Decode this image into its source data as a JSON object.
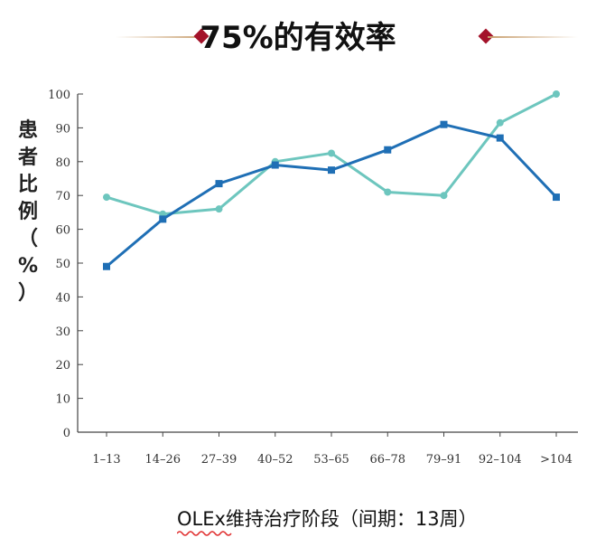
{
  "title": "75%的有效率",
  "colors": {
    "accent": "#a3122a",
    "deco_line": "#c9a070",
    "series_dark": "#1f6fb5",
    "series_light": "#6dc6be",
    "axis": "#444444"
  },
  "chart_data": {
    "type": "line",
    "ylabel_chars": [
      "患",
      "者",
      "比",
      "例",
      "（",
      "%",
      "）"
    ],
    "xlabel": "OLEx维持治疗阶段（间期：13周）",
    "categories": [
      "1–13",
      "14–26",
      "27–39",
      "40–52",
      "53–65",
      "66–78",
      "79–91",
      "92–104",
      ">104"
    ],
    "yticks": [
      0,
      10,
      20,
      30,
      40,
      50,
      60,
      70,
      80,
      90,
      100
    ],
    "ylim": [
      0,
      100
    ],
    "grid": false,
    "series": [
      {
        "values": [
          69.5,
          64.5,
          66,
          80,
          82.5,
          71,
          70,
          91.5,
          100
        ],
        "color": "#6dc6be",
        "marker": "circle"
      },
      {
        "values": [
          49,
          63,
          73.5,
          79,
          77.5,
          83.5,
          91,
          87,
          69.5
        ],
        "color": "#1f6fb5",
        "marker": "square"
      }
    ]
  }
}
